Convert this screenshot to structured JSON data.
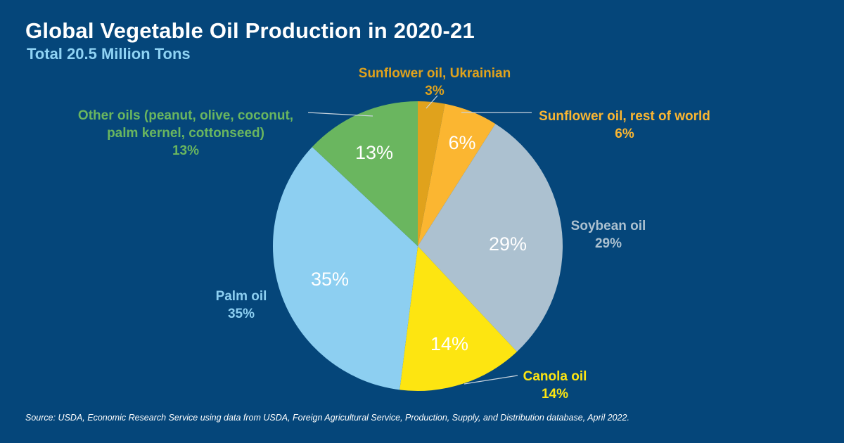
{
  "header": {
    "title": "Global Vegetable Oil Production in 2020-21",
    "subtitle": "Total 20.5 Million Tons"
  },
  "footer": {
    "source": "Source: USDA, Economic Research Service using data from USDA, Foreign Agricultural Service, Production, Supply, and Distribution database, April 2022."
  },
  "chart_data": {
    "type": "pie",
    "title": "Global Vegetable Oil Production in 2020-21",
    "subtitle": "Total 20.5 Million Tons",
    "unit": "%",
    "slices": [
      {
        "label": "Sunflower oil, Ukrainian",
        "value": 3,
        "display": "3%",
        "inner": "",
        "color": "#e0a21c"
      },
      {
        "label": "Sunflower oil, rest of world",
        "value": 6,
        "display": "6%",
        "inner": "6%",
        "color": "#fbb631"
      },
      {
        "label": "Soybean oil",
        "value": 29,
        "display": "29%",
        "inner": "29%",
        "color": "#acc1d0"
      },
      {
        "label": "Canola oil",
        "value": 14,
        "display": "14%",
        "inner": "14%",
        "color": "#fde511"
      },
      {
        "label": "Palm oil",
        "value": 35,
        "display": "35%",
        "inner": "35%",
        "color": "#8dcff1"
      },
      {
        "label": "Other oils (peanut, olive, coconut, palm kernel, cottonseed)",
        "label_lines": [
          "Other oils  (peanut, olive, coconut,",
          "palm kernel, cottonseed)"
        ],
        "value": 13,
        "display": "13%",
        "inner": "13%",
        "color": "#6ab65f"
      }
    ],
    "label_colors": [
      "#e0a21c",
      "#fbb631",
      "#acc1d0",
      "#fde511",
      "#8dcff1",
      "#6ab65f"
    ]
  }
}
